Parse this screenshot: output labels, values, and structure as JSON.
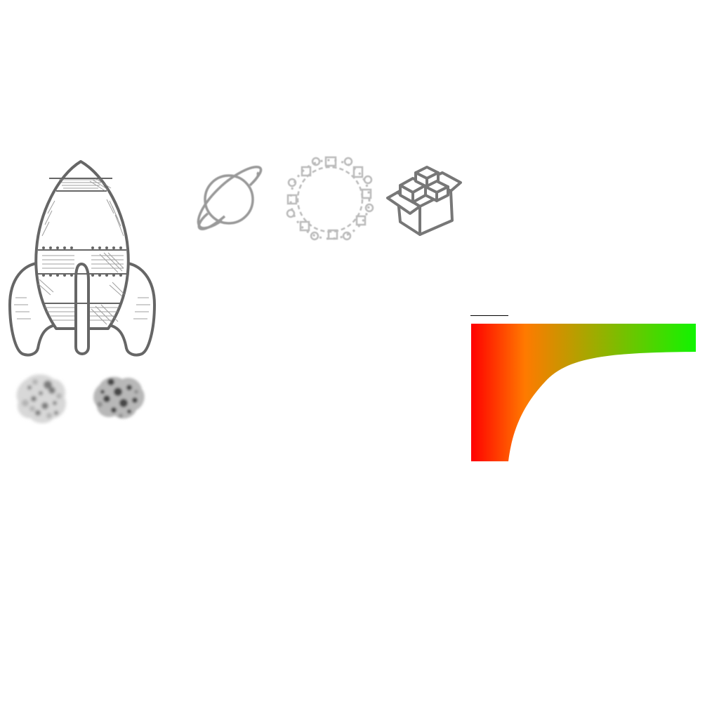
{
  "canvas": {
    "background": "#ffffff"
  },
  "illustrations": {
    "rocket": {
      "icon": "rocket-icon",
      "stroke": "#666666"
    },
    "smoke_left": {
      "icon": "smoke-puff-icon"
    },
    "smoke_right": {
      "icon": "smoke-puff-icon"
    },
    "planet": {
      "icon": "ringed-planet-icon",
      "stroke": "#999999"
    },
    "gears_ring": {
      "icon": "gears-ring-icon",
      "stroke": "#bbbbbb"
    },
    "package": {
      "icon": "open-box-icon",
      "stroke": "#777777"
    }
  },
  "gradient_shape": {
    "colors": [
      "#ff0000",
      "#ff7a00",
      "#11f400"
    ]
  }
}
